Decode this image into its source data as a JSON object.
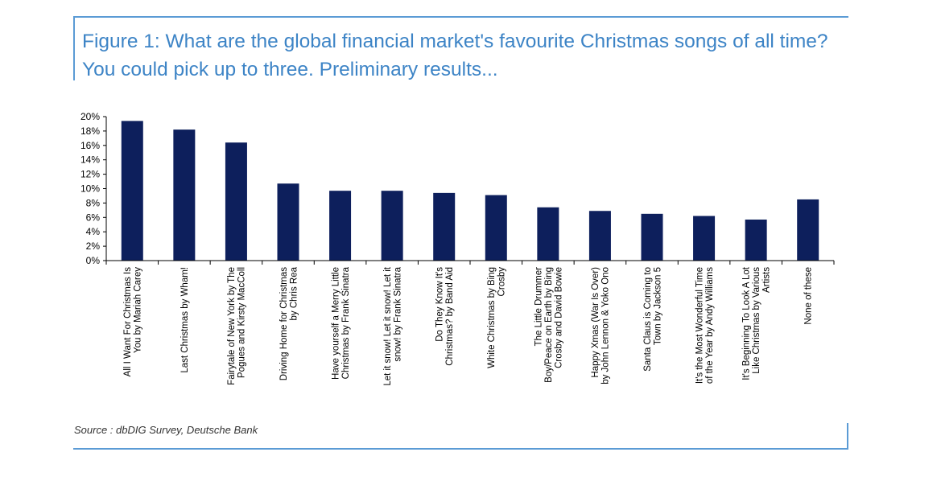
{
  "title": "Figure 1: What are the global financial market's favourite Christmas songs of all time? You could pick up to three. Preliminary results...",
  "source": "Source : dbDIG Survey, Deutsche Bank",
  "chart_data": {
    "type": "bar",
    "title": "Figure 1: What are the global financial market's favourite Christmas songs of all time? You could pick up to three. Preliminary results...",
    "xlabel": "",
    "ylabel": "",
    "ylim": [
      0,
      20
    ],
    "yticks": [
      "0%",
      "2%",
      "4%",
      "6%",
      "8%",
      "10%",
      "12%",
      "14%",
      "16%",
      "18%",
      "20%"
    ],
    "grid": false,
    "legend": "none",
    "bar_color": "#0d1f5c",
    "categories": [
      [
        "All I Want For Christmas Is",
        "You by Mariah Carey"
      ],
      [
        "Last Christmas by Wham!"
      ],
      [
        "Fairytale of New York by The",
        "Pogues and Kirsty MacColl"
      ],
      [
        "Driving Home for Christmas",
        "by Chris Rea"
      ],
      [
        "Have yourself a Merry Little",
        "Christmas by Frank Sinatra"
      ],
      [
        "Let it snow! Let it snow! Let it",
        "snow! by Frank Sinatra"
      ],
      [
        "Do They Know It's",
        "Christmas? by Band Aid"
      ],
      [
        "White Christmas by Bing",
        "Crosby"
      ],
      [
        "The Little Drummer",
        "Boy/Peace on Earth by Bing",
        "Crosby and David Bowie"
      ],
      [
        "Happy Xmas (War Is Over)",
        "by John Lennon & Yoko Ono"
      ],
      [
        "Santa Claus is Coming to",
        "Town by Jackson 5"
      ],
      [
        "It's the Most Wonderful Time",
        "of the Year by Andy Williams"
      ],
      [
        "It's Beginning To Look A Lot",
        "Like Christmas by Various",
        "Artists"
      ],
      [
        "None of these"
      ]
    ],
    "values": [
      19.4,
      18.2,
      16.4,
      10.7,
      9.7,
      9.7,
      9.4,
      9.1,
      7.4,
      6.9,
      6.5,
      6.2,
      5.7,
      8.5
    ]
  }
}
